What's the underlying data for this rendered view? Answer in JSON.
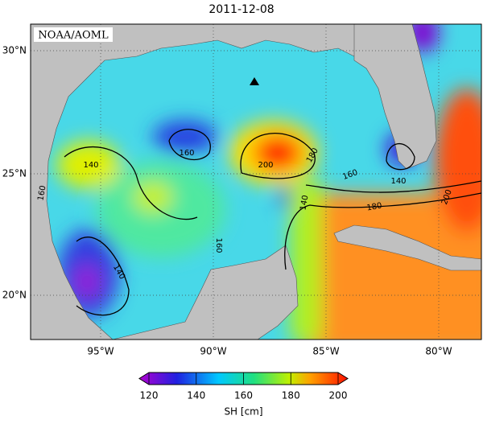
{
  "title": "2011-12-08",
  "source": "NOAA/AOML",
  "lat_labels": [
    "30°N",
    "25°N",
    "20°N"
  ],
  "lon_labels": [
    "95°W",
    "90°W",
    "85°W",
    "80°W"
  ],
  "contour_labels": [
    "160",
    "140",
    "160",
    "200",
    "180",
    "160",
    "180",
    "140",
    "160",
    "140",
    "200",
    "140"
  ],
  "colorbar": {
    "range": [
      120,
      200
    ],
    "ticks": [
      120,
      140,
      160,
      180,
      200
    ],
    "label": "SH [cm]"
  }
}
